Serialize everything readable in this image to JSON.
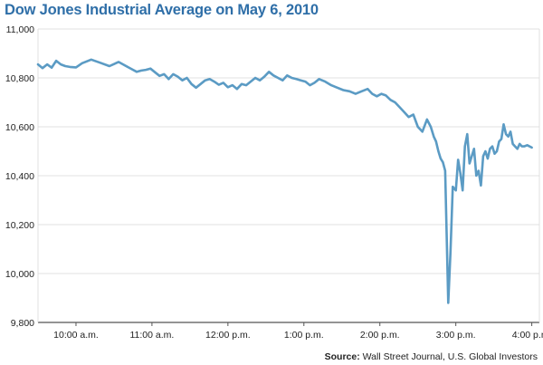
{
  "chart_data": {
    "type": "line",
    "title": "Dow Jones Industrial Average on May 6, 2010",
    "xlabel": "",
    "ylabel": "",
    "ylim": [
      9800,
      11000
    ],
    "yticks": [
      9800,
      10000,
      10200,
      10400,
      10600,
      10800,
      11000
    ],
    "ytick_labels": [
      "9,800",
      "10,000",
      "10,200",
      "10,400",
      "10,600",
      "10,800",
      "11,000"
    ],
    "xlim": [
      9.5,
      16.1
    ],
    "xticks": [
      10,
      11,
      12,
      13,
      14,
      15,
      16
    ],
    "xtick_labels": [
      "10:00 a.m.",
      "11:00 a.m.",
      "12:00 p.m.",
      "1:00 p.m.",
      "2:00 p.m.",
      "3:00 p.m.",
      "4:00 p.m."
    ],
    "grid": true,
    "line_color": "#5b9bc4",
    "series": [
      {
        "x": [
          9.5,
          9.56,
          9.62,
          9.68,
          9.74,
          9.8,
          9.86,
          9.92,
          10.0,
          10.08,
          10.2,
          10.32,
          10.44,
          10.56,
          10.62,
          10.68,
          10.74,
          10.8,
          10.86,
          10.92,
          10.98,
          11.04,
          11.1,
          11.16,
          11.22,
          11.28,
          11.34,
          11.4,
          11.46,
          11.52,
          11.58,
          11.64,
          11.7,
          11.76,
          11.82,
          11.88,
          11.94,
          12.0,
          12.06,
          12.12,
          12.18,
          12.24,
          12.3,
          12.36,
          12.42,
          12.48,
          12.54,
          12.6,
          12.66,
          12.72,
          12.78,
          12.84,
          12.9,
          12.96,
          13.02,
          13.08,
          13.14,
          13.2,
          13.28,
          13.36,
          13.44,
          13.52,
          13.6,
          13.68,
          13.76,
          13.84,
          13.9,
          13.96,
          14.02,
          14.08,
          14.14,
          14.2,
          14.26,
          14.32,
          14.38,
          14.44,
          14.5,
          14.56,
          14.62,
          14.67,
          14.71,
          14.74,
          14.77,
          14.8,
          14.83,
          14.86,
          14.9,
          14.93,
          14.96,
          15.0,
          15.03,
          15.06,
          15.09,
          15.12,
          15.15,
          15.18,
          15.21,
          15.24,
          15.27,
          15.3,
          15.33,
          15.36,
          15.39,
          15.42,
          15.45,
          15.48,
          15.51,
          15.54,
          15.57,
          15.6,
          15.63,
          15.66,
          15.69,
          15.72,
          15.75,
          15.78,
          15.81,
          15.84,
          15.87,
          15.9,
          15.94,
          16.0
        ],
        "values": [
          10855,
          10840,
          10855,
          10842,
          10870,
          10855,
          10848,
          10845,
          10843,
          10860,
          10875,
          10862,
          10848,
          10865,
          10855,
          10845,
          10835,
          10825,
          10830,
          10833,
          10838,
          10823,
          10808,
          10815,
          10795,
          10815,
          10805,
          10790,
          10800,
          10775,
          10760,
          10775,
          10790,
          10795,
          10785,
          10772,
          10780,
          10762,
          10770,
          10755,
          10775,
          10770,
          10785,
          10800,
          10790,
          10805,
          10825,
          10810,
          10800,
          10790,
          10810,
          10800,
          10795,
          10790,
          10785,
          10770,
          10780,
          10795,
          10785,
          10770,
          10760,
          10750,
          10745,
          10735,
          10745,
          10755,
          10735,
          10725,
          10735,
          10728,
          10710,
          10700,
          10680,
          10660,
          10640,
          10650,
          10600,
          10580,
          10630,
          10600,
          10560,
          10540,
          10500,
          10470,
          10455,
          10420,
          9880,
          10090,
          10355,
          10340,
          10465,
          10410,
          10340,
          10520,
          10570,
          10450,
          10480,
          10510,
          10400,
          10420,
          10360,
          10480,
          10500,
          10470,
          10510,
          10520,
          10490,
          10500,
          10540,
          10550,
          10610,
          10570,
          10560,
          10580,
          10530,
          10520,
          10510,
          10530,
          10520,
          10520,
          10525,
          10515
        ]
      }
    ]
  },
  "source": {
    "label": "Source:",
    "text": "Wall Street Journal, U.S. Global Investors"
  }
}
